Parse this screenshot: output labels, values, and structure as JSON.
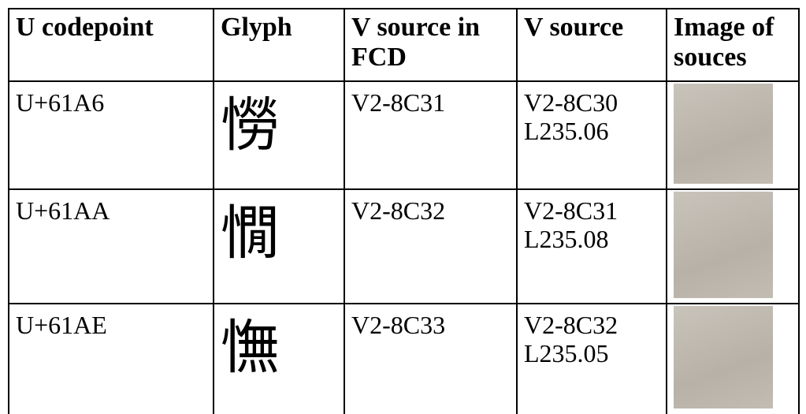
{
  "table": {
    "header": [
      "U codepoint",
      "Glyph",
      "V source in FCD",
      "V source",
      "Image of souces"
    ],
    "rows": [
      {
        "codepoint": "U+61A6",
        "glyph": "憦",
        "fcd_source": "V2-8C31",
        "v_source": [
          "V2-8C30",
          "L235.06"
        ]
      },
      {
        "codepoint": "U+61AA",
        "glyph": "憪",
        "fcd_source": "V2-8C32",
        "v_source": [
          "V2-8C31",
          "L235.08"
        ]
      },
      {
        "codepoint": "U+61AE",
        "glyph": "憮",
        "fcd_source": "V2-8C33",
        "v_source": [
          "V2-8C32",
          "L235.05"
        ]
      }
    ]
  }
}
